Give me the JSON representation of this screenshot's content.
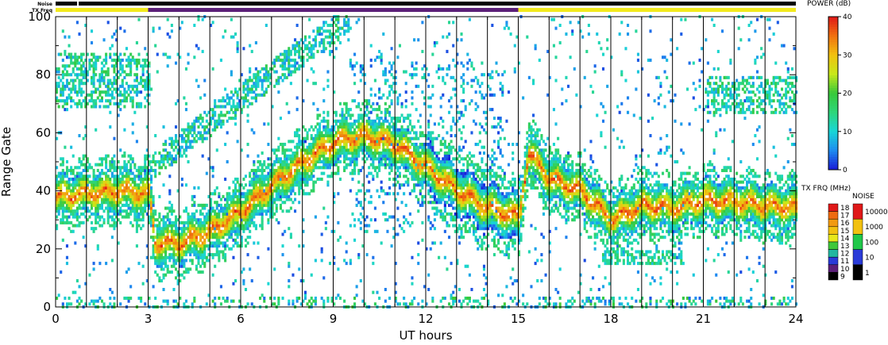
{
  "chart_data": {
    "type": "heatmap",
    "title": "",
    "xlabel": "UT hours",
    "ylabel": "Range Gate",
    "xlim": [
      0,
      24
    ],
    "ylim": [
      0,
      100
    ],
    "x_ticks": [
      "0",
      "3",
      "6",
      "9",
      "12",
      "15",
      "18",
      "21",
      "24"
    ],
    "x_tick_values": [
      0,
      3,
      6,
      9,
      12,
      15,
      18,
      21,
      24
    ],
    "y_ticks": [
      "0",
      "20",
      "40",
      "60",
      "80",
      "100"
    ],
    "y_tick_values": [
      0,
      20,
      40,
      60,
      80,
      100
    ],
    "scan_boundaries_hours": [
      1,
      2,
      3,
      4,
      5,
      6,
      7,
      8,
      9,
      10,
      11,
      12,
      13,
      14,
      15,
      16,
      17,
      18,
      19,
      20,
      21,
      22,
      23
    ],
    "top_strips": {
      "noise_label": "Noise",
      "txfreq_label": "TX Freq",
      "noise_segments": [
        {
          "start": 0,
          "end": 0.7,
          "level": "black"
        },
        {
          "start": 0.7,
          "end": 0.75,
          "level": "white"
        },
        {
          "start": 0.75,
          "end": 24,
          "level": "black"
        }
      ],
      "txfreq_segments": [
        {
          "start": 0,
          "end": 3,
          "color": "#f2ea1d"
        },
        {
          "start": 3,
          "end": 15,
          "color": "#5b1f78"
        },
        {
          "start": 15,
          "end": 24,
          "color": "#f2ea1d"
        }
      ]
    },
    "power_colorbar": {
      "title": "POWER (dB)",
      "ticks": [
        "0",
        "10",
        "20",
        "30",
        "40"
      ],
      "tick_values": [
        0,
        10,
        20,
        30,
        40
      ],
      "range": [
        0,
        40
      ]
    },
    "txfreq_colorbar": {
      "title": "TX FRQ (MHz)",
      "labels": [
        "18",
        "17",
        "16",
        "15",
        "14",
        "13",
        "12",
        "11",
        "10",
        "9"
      ],
      "colors": [
        "#e01818",
        "#ee6b10",
        "#f29a10",
        "#f2c110",
        "#e8e81a",
        "#3fc83a",
        "#22b6a0",
        "#2a3bd8",
        "#5b1f78",
        "#000000"
      ]
    },
    "noise_colorbar": {
      "title": "NOISE",
      "labels": [
        "10000",
        "1000",
        "100",
        "10",
        "1"
      ],
      "colors": [
        "#e01818",
        "#f2c110",
        "#21c84a",
        "#2a3bd8",
        "#000000"
      ]
    },
    "series": [
      {
        "description_x_hours": [
          0,
          1,
          2,
          3,
          3.2,
          4,
          5,
          6,
          7,
          8,
          9,
          10,
          11,
          12,
          13,
          14,
          15,
          15.3,
          16,
          17,
          18,
          19,
          20,
          21,
          22,
          23,
          24
        ],
        "ridge_range_gate": [
          38,
          39,
          40,
          39,
          22,
          22,
          26,
          33,
          42,
          50,
          57,
          59,
          56,
          48,
          40,
          34,
          31,
          53,
          44,
          40,
          30,
          35,
          34,
          37,
          36,
          35,
          34
        ]
      }
    ]
  }
}
